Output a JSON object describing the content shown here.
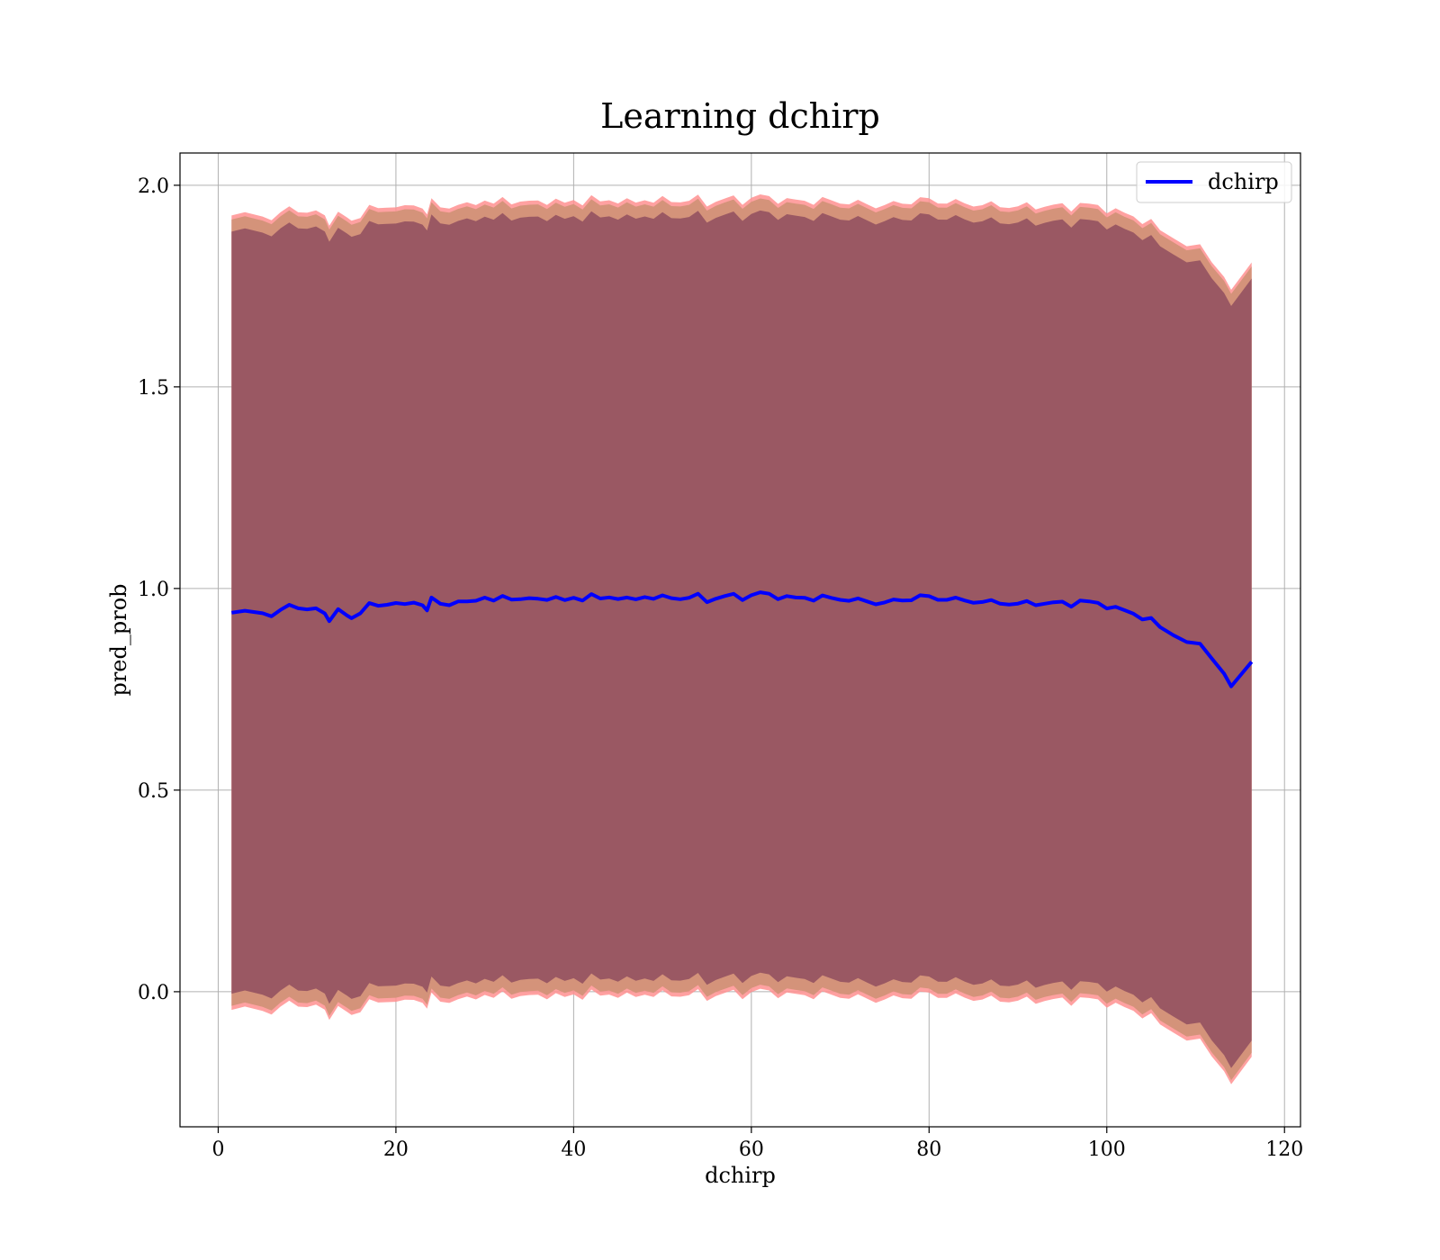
{
  "chart_data": {
    "type": "line",
    "title": "Learning dchirp",
    "xlabel": "dchirp",
    "ylabel": "pred_prob",
    "xlim": [
      -4.3,
      121.8
    ],
    "ylim": [
      -0.335,
      2.08
    ],
    "xticks": [
      0,
      20,
      40,
      60,
      80,
      100,
      120
    ],
    "xtick_labels": [
      "0",
      "20",
      "40",
      "60",
      "80",
      "100",
      "120"
    ],
    "yticks": [
      0.0,
      0.5,
      1.0,
      1.5,
      2.0
    ],
    "ytick_labels": [
      "0.0",
      "0.5",
      "1.0",
      "1.5",
      "2.0"
    ],
    "grid": true,
    "legend": {
      "location": "top-right",
      "entries": [
        "dchirp"
      ]
    },
    "colors": {
      "line": "#0000ff",
      "inner_band": "#8b4a5e",
      "outer_band": "#d4937a",
      "outer_edge": "#ff9090"
    },
    "series": [
      {
        "name": "dchirp",
        "x": [
          1.5,
          3,
          5,
          6,
          7,
          8,
          9,
          10,
          11,
          12,
          12.5,
          13.5,
          14.5,
          15,
          16,
          17,
          18,
          19,
          20,
          21,
          22,
          23,
          23.5,
          24,
          25,
          26,
          27,
          28,
          29,
          30,
          31,
          32,
          33,
          34,
          35,
          36,
          37,
          38,
          39,
          40,
          41,
          42,
          43,
          44,
          45,
          46,
          47,
          48,
          49,
          50,
          51,
          52,
          53,
          54,
          55,
          56,
          57,
          58,
          59,
          60,
          61,
          62,
          63,
          64,
          65,
          66,
          67,
          68,
          69,
          70,
          71,
          72,
          73,
          74,
          75,
          76,
          77,
          78,
          79,
          80,
          81,
          82,
          83,
          84,
          85,
          86,
          87,
          88,
          89,
          90,
          91,
          92,
          93,
          94,
          95,
          96,
          97,
          98,
          99,
          100,
          101,
          102,
          103,
          104,
          105,
          106,
          107.5,
          109,
          110.5,
          111.8,
          113.2,
          114,
          116.3
        ],
        "y": [
          0.94,
          0.94,
          0.94,
          0.935,
          0.945,
          0.955,
          0.955,
          0.95,
          0.948,
          0.935,
          0.925,
          0.948,
          0.93,
          0.925,
          0.945,
          0.96,
          0.955,
          0.96,
          0.97,
          0.955,
          0.965,
          0.96,
          0.95,
          0.97,
          0.965,
          0.96,
          0.97,
          0.96,
          0.975,
          0.978,
          0.97,
          0.975,
          0.98,
          0.972,
          0.975,
          0.97,
          0.98,
          0.975,
          0.97,
          0.975,
          0.978,
          0.98,
          0.975,
          0.978,
          0.98,
          0.97,
          0.975,
          0.98,
          0.978,
          0.975,
          0.98,
          0.975,
          0.978,
          0.98,
          0.972,
          0.975,
          0.98,
          0.982,
          0.978,
          0.982,
          0.988,
          0.985,
          0.98,
          0.978,
          0.975,
          0.978,
          0.975,
          0.978,
          0.975,
          0.975,
          0.972,
          0.97,
          0.968,
          0.965,
          0.965,
          0.968,
          0.972,
          0.975,
          0.98,
          0.978,
          0.975,
          0.975,
          0.972,
          0.97,
          0.968,
          0.968,
          0.965,
          0.965,
          0.963,
          0.962,
          0.963,
          0.964,
          0.963,
          0.964,
          0.963,
          0.962,
          0.968,
          0.966,
          0.962,
          0.958,
          0.95,
          0.945,
          0.937,
          0.93,
          0.92,
          0.905,
          0.885,
          0.872,
          0.855,
          0.83,
          0.79,
          0.76,
          0.81
        ]
      }
    ]
  }
}
